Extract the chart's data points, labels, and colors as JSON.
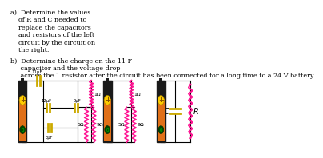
{
  "bg_color": "#ffffff",
  "text_color": "#000000",
  "resistor_color": "#ff1493",
  "wire_color": "#000000",
  "cap_color": "#ccaa00",
  "text_a": "a)  Determine the values\n    of R and C needed to\n    replace the capacitors\n    and resistors of the left\n    circuit by the circuit on\n    the right.",
  "text_b1": "b)  Determine the charge on the 11 F",
  "text_b2": "     capacitor and the voltage drop",
  "text_b3": "     across the 1 resistor after the circuit has been connected for a long time to a 24 V battery.",
  "font_size": 5.8
}
